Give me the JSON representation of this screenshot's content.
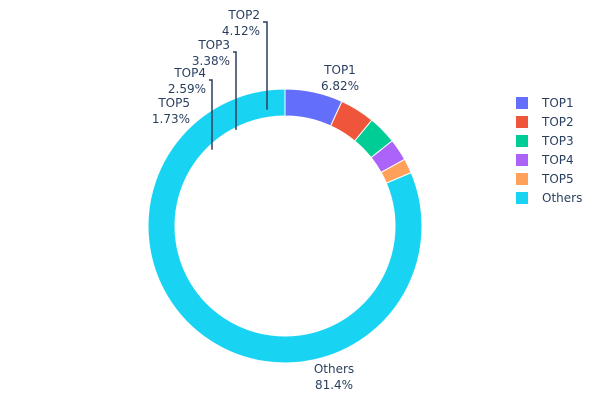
{
  "chart_data": {
    "type": "pie",
    "hole": true,
    "direction": "clockwise",
    "categories": [
      "TOP1",
      "TOP2",
      "TOP3",
      "TOP4",
      "TOP5",
      "Others"
    ],
    "values": [
      6.82,
      4.12,
      3.38,
      2.59,
      1.73,
      81.4
    ],
    "value_labels": [
      "6.82%",
      "4.12%",
      "3.38%",
      "2.59%",
      "1.73%",
      "81.4%"
    ],
    "colors": [
      "#636efa",
      "#ef553b",
      "#00cc96",
      "#ab63fa",
      "#ffa15a",
      "#19d3f3"
    ],
    "legend": {
      "position": "right",
      "entries": [
        "TOP1",
        "TOP2",
        "TOP3",
        "TOP4",
        "TOP5",
        "Others"
      ]
    }
  }
}
